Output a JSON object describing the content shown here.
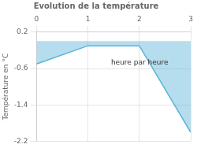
{
  "chart_data": {
    "type": "area",
    "title": "Evolution de la température",
    "ylabel": "Température en °C",
    "x": [
      0,
      1,
      2,
      3
    ],
    "values": [
      -0.5,
      -0.1,
      -0.1,
      -2.0
    ],
    "color": "#5ab4d6",
    "xlim": [
      0,
      3
    ],
    "xticks": [
      0,
      1,
      2,
      3
    ],
    "ylim": [
      -2.2,
      0.2
    ],
    "yticks": [
      -2.2,
      -1.4,
      -0.6,
      0.2
    ],
    "grid": true,
    "annotations": [
      {
        "text": "heure par heure",
        "x": 1.45,
        "y": -0.52
      }
    ]
  }
}
